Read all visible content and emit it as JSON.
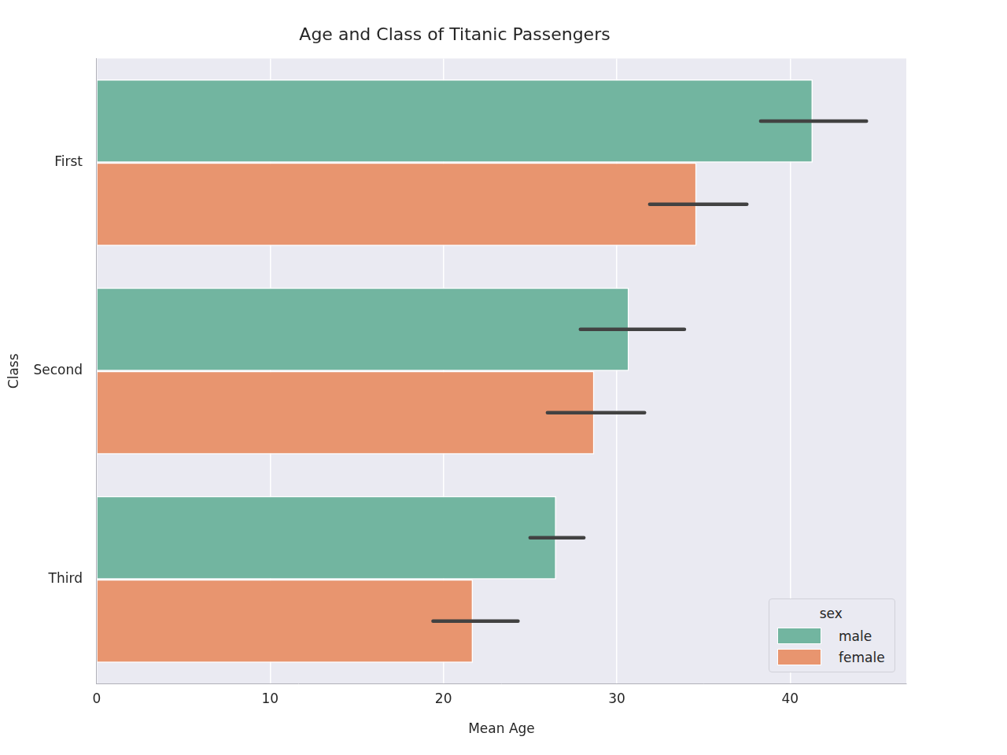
{
  "chart_data": {
    "type": "bar",
    "orientation": "horizontal",
    "title": "Age and Class of Titanic Passengers",
    "x_label": "Mean Age",
    "y_label": "Class",
    "categories": [
      "First",
      "Second",
      "Third"
    ],
    "series": [
      {
        "name": "male",
        "color": "#72b5a0",
        "values": [
          41.3,
          30.7,
          26.5
        ],
        "ci_low": [
          38.3,
          27.9,
          25.0
        ],
        "ci_high": [
          44.4,
          33.9,
          28.1
        ]
      },
      {
        "name": "female",
        "color": "#e8956f",
        "values": [
          34.6,
          28.7,
          21.7
        ],
        "ci_low": [
          31.9,
          26.0,
          19.4
        ],
        "ci_high": [
          37.5,
          31.6,
          24.3
        ]
      }
    ],
    "xlim": [
      0,
      46.7
    ],
    "xticks": [
      0,
      10,
      20,
      30,
      40
    ],
    "grid": true,
    "legend": "lower right",
    "legend_title": "sex"
  }
}
